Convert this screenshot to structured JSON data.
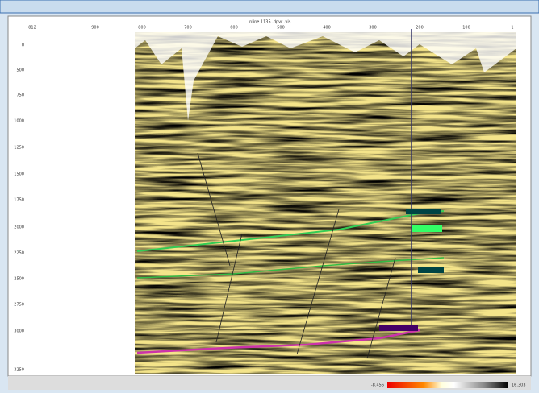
{
  "header": {
    "title": "Inline 1135 .dpvr .vis"
  },
  "top_axis": {
    "labels": [
      "812",
      "900",
      "800",
      "700",
      "600",
      "500",
      "400",
      "300",
      "200",
      "100",
      "1"
    ]
  },
  "left_axis": {
    "labels": [
      "0",
      "500",
      "750",
      "1000",
      "1250",
      "1500",
      "1750",
      "2000",
      "2250",
      "2500",
      "2750",
      "3000",
      "3250"
    ]
  },
  "colorbar": {
    "min_label": "-8.456",
    "max_label": "16.303"
  }
}
